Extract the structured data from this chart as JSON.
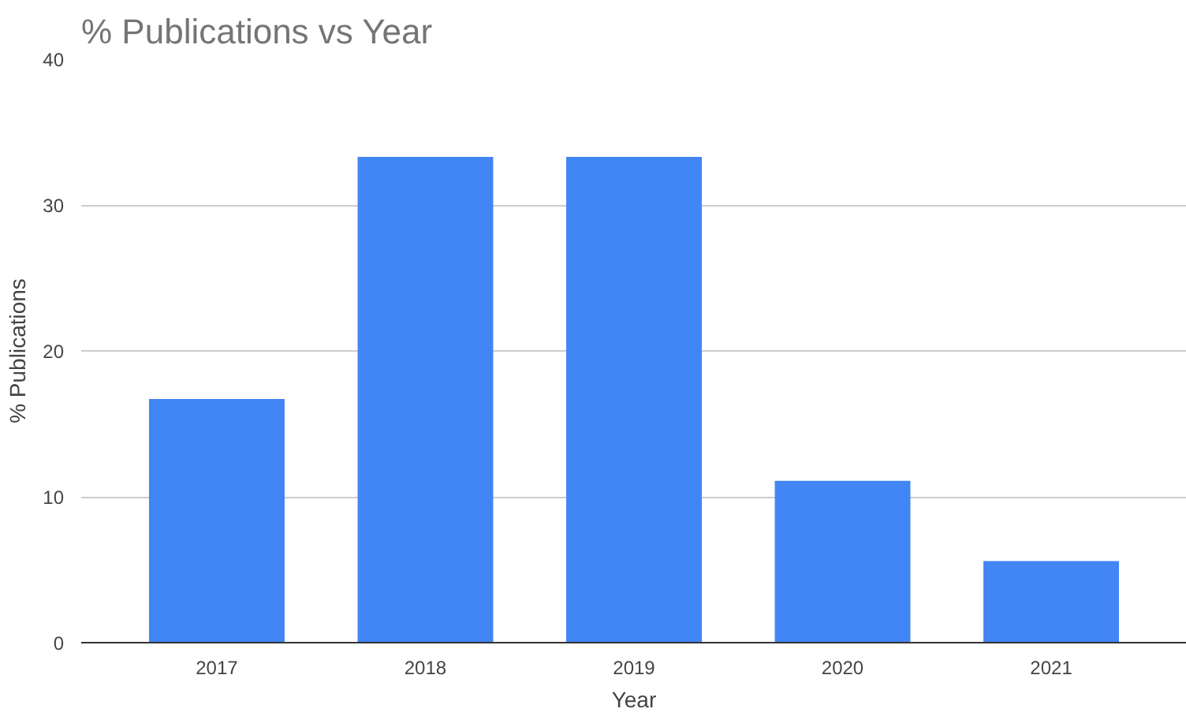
{
  "chart_data": {
    "type": "bar",
    "title": "% Publications vs Year",
    "xlabel": "Year",
    "ylabel": "% Publications",
    "categories": [
      "2017",
      "2018",
      "2019",
      "2020",
      "2021"
    ],
    "values": [
      16.7,
      33.3,
      33.3,
      11.1,
      5.6
    ],
    "color": "#4285f4",
    "ylim": [
      0,
      40
    ],
    "yticks": [
      0,
      10,
      20,
      30,
      40
    ],
    "grid": "y"
  }
}
